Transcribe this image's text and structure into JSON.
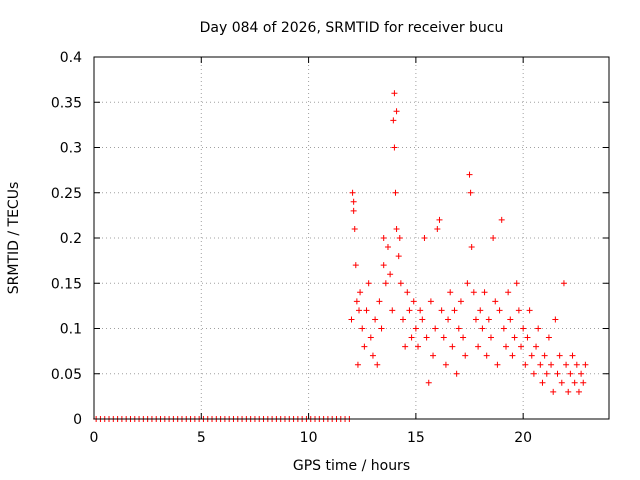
{
  "chart_data": {
    "type": "scatter",
    "title": "Day 084 of 2026, SRMTID for receiver bucu",
    "xlabel": "GPS time / hours",
    "ylabel": "SRMTID / TECUs",
    "xlim": [
      0,
      24
    ],
    "ylim": [
      0,
      0.4
    ],
    "xticks": [
      0,
      5,
      10,
      15,
      20
    ],
    "xtick_labels": [
      "0",
      "5",
      "10",
      "15",
      "20"
    ],
    "yticks": [
      0,
      0.05,
      0.1,
      0.15,
      0.2,
      0.25,
      0.3,
      0.35,
      0.4
    ],
    "ytick_labels": [
      "0",
      "0.05",
      "0.1",
      "0.15",
      "0.2",
      "0.25",
      "0.3",
      "0.35",
      "0.4"
    ],
    "grid": true,
    "marker": "plus",
    "legend": "none",
    "series": [
      {
        "name": "SRMTID",
        "color": "#ff0000",
        "points": [
          [
            0.1,
            0
          ],
          [
            0.3,
            0
          ],
          [
            0.5,
            0
          ],
          [
            0.7,
            0
          ],
          [
            0.9,
            0
          ],
          [
            1.1,
            0
          ],
          [
            1.3,
            0
          ],
          [
            1.5,
            0
          ],
          [
            1.7,
            0
          ],
          [
            1.9,
            0
          ],
          [
            2.1,
            0
          ],
          [
            2.3,
            0
          ],
          [
            2.5,
            0
          ],
          [
            2.7,
            0
          ],
          [
            2.9,
            0
          ],
          [
            3.1,
            0
          ],
          [
            3.3,
            0
          ],
          [
            3.5,
            0
          ],
          [
            3.7,
            0
          ],
          [
            3.9,
            0
          ],
          [
            4.1,
            0
          ],
          [
            4.3,
            0
          ],
          [
            4.5,
            0
          ],
          [
            4.7,
            0
          ],
          [
            4.9,
            0
          ],
          [
            5.1,
            0
          ],
          [
            5.3,
            0
          ],
          [
            5.5,
            0
          ],
          [
            5.7,
            0
          ],
          [
            5.9,
            0
          ],
          [
            6.1,
            0
          ],
          [
            6.3,
            0
          ],
          [
            6.5,
            0
          ],
          [
            6.7,
            0
          ],
          [
            6.9,
            0
          ],
          [
            7.1,
            0
          ],
          [
            7.3,
            0
          ],
          [
            7.5,
            0
          ],
          [
            7.7,
            0
          ],
          [
            7.9,
            0
          ],
          [
            8.1,
            0
          ],
          [
            8.3,
            0
          ],
          [
            8.5,
            0
          ],
          [
            8.7,
            0
          ],
          [
            8.9,
            0
          ],
          [
            9.1,
            0
          ],
          [
            9.3,
            0
          ],
          [
            9.5,
            0
          ],
          [
            9.7,
            0
          ],
          [
            9.9,
            0
          ],
          [
            10.1,
            0
          ],
          [
            10.3,
            0
          ],
          [
            10.5,
            0
          ],
          [
            10.7,
            0
          ],
          [
            10.9,
            0
          ],
          [
            11.1,
            0
          ],
          [
            11.3,
            0
          ],
          [
            11.5,
            0
          ],
          [
            11.7,
            0
          ],
          [
            11.9,
            0
          ],
          [
            12.0,
            0.11
          ],
          [
            12.05,
            0.25
          ],
          [
            12.1,
            0.23
          ],
          [
            12.1,
            0.24
          ],
          [
            12.15,
            0.21
          ],
          [
            12.2,
            0.17
          ],
          [
            12.25,
            0.13
          ],
          [
            12.3,
            0.06
          ],
          [
            12.35,
            0.12
          ],
          [
            12.4,
            0.14
          ],
          [
            12.5,
            0.1
          ],
          [
            12.6,
            0.08
          ],
          [
            12.7,
            0.12
          ],
          [
            12.8,
            0.15
          ],
          [
            12.9,
            0.09
          ],
          [
            13.0,
            0.07
          ],
          [
            13.1,
            0.11
          ],
          [
            13.2,
            0.06
          ],
          [
            13.3,
            0.13
          ],
          [
            13.4,
            0.1
          ],
          [
            13.5,
            0.2
          ],
          [
            13.5,
            0.17
          ],
          [
            13.6,
            0.15
          ],
          [
            13.7,
            0.19
          ],
          [
            13.8,
            0.16
          ],
          [
            13.9,
            0.12
          ],
          [
            13.95,
            0.33
          ],
          [
            14.0,
            0.36
          ],
          [
            14.0,
            0.3
          ],
          [
            14.05,
            0.25
          ],
          [
            14.1,
            0.34
          ],
          [
            14.1,
            0.21
          ],
          [
            14.2,
            0.18
          ],
          [
            14.25,
            0.2
          ],
          [
            14.3,
            0.15
          ],
          [
            14.4,
            0.11
          ],
          [
            14.5,
            0.08
          ],
          [
            14.6,
            0.14
          ],
          [
            14.7,
            0.12
          ],
          [
            14.8,
            0.09
          ],
          [
            14.9,
            0.13
          ],
          [
            15.0,
            0.1
          ],
          [
            15.1,
            0.08
          ],
          [
            15.2,
            0.12
          ],
          [
            15.3,
            0.11
          ],
          [
            15.4,
            0.2
          ],
          [
            15.5,
            0.09
          ],
          [
            15.6,
            0.04
          ],
          [
            15.7,
            0.13
          ],
          [
            15.8,
            0.07
          ],
          [
            15.9,
            0.1
          ],
          [
            16.0,
            0.21
          ],
          [
            16.1,
            0.22
          ],
          [
            16.2,
            0.12
          ],
          [
            16.3,
            0.09
          ],
          [
            16.4,
            0.06
          ],
          [
            16.5,
            0.11
          ],
          [
            16.6,
            0.14
          ],
          [
            16.7,
            0.08
          ],
          [
            16.8,
            0.12
          ],
          [
            16.9,
            0.05
          ],
          [
            17.0,
            0.1
          ],
          [
            17.1,
            0.13
          ],
          [
            17.2,
            0.09
          ],
          [
            17.3,
            0.07
          ],
          [
            17.4,
            0.15
          ],
          [
            17.5,
            0.27
          ],
          [
            17.55,
            0.25
          ],
          [
            17.6,
            0.19
          ],
          [
            17.7,
            0.14
          ],
          [
            17.8,
            0.11
          ],
          [
            17.9,
            0.08
          ],
          [
            18.0,
            0.12
          ],
          [
            18.1,
            0.1
          ],
          [
            18.2,
            0.14
          ],
          [
            18.3,
            0.07
          ],
          [
            18.4,
            0.11
          ],
          [
            18.5,
            0.09
          ],
          [
            18.6,
            0.2
          ],
          [
            18.7,
            0.13
          ],
          [
            18.8,
            0.06
          ],
          [
            18.9,
            0.12
          ],
          [
            19.0,
            0.22
          ],
          [
            19.1,
            0.1
          ],
          [
            19.2,
            0.08
          ],
          [
            19.3,
            0.14
          ],
          [
            19.4,
            0.11
          ],
          [
            19.5,
            0.07
          ],
          [
            19.6,
            0.09
          ],
          [
            19.7,
            0.15
          ],
          [
            19.8,
            0.12
          ],
          [
            19.9,
            0.08
          ],
          [
            20.0,
            0.1
          ],
          [
            20.1,
            0.06
          ],
          [
            20.2,
            0.09
          ],
          [
            20.3,
            0.12
          ],
          [
            20.4,
            0.07
          ],
          [
            20.5,
            0.05
          ],
          [
            20.6,
            0.08
          ],
          [
            20.7,
            0.1
          ],
          [
            20.8,
            0.06
          ],
          [
            20.9,
            0.04
          ],
          [
            21.0,
            0.07
          ],
          [
            21.1,
            0.05
          ],
          [
            21.2,
            0.09
          ],
          [
            21.3,
            0.06
          ],
          [
            21.4,
            0.03
          ],
          [
            21.5,
            0.11
          ],
          [
            21.6,
            0.05
          ],
          [
            21.7,
            0.07
          ],
          [
            21.8,
            0.04
          ],
          [
            21.9,
            0.15
          ],
          [
            22.0,
            0.06
          ],
          [
            22.1,
            0.03
          ],
          [
            22.2,
            0.05
          ],
          [
            22.3,
            0.07
          ],
          [
            22.4,
            0.04
          ],
          [
            22.5,
            0.06
          ],
          [
            22.6,
            0.03
          ],
          [
            22.7,
            0.05
          ],
          [
            22.8,
            0.04
          ],
          [
            22.9,
            0.06
          ]
        ]
      }
    ]
  }
}
